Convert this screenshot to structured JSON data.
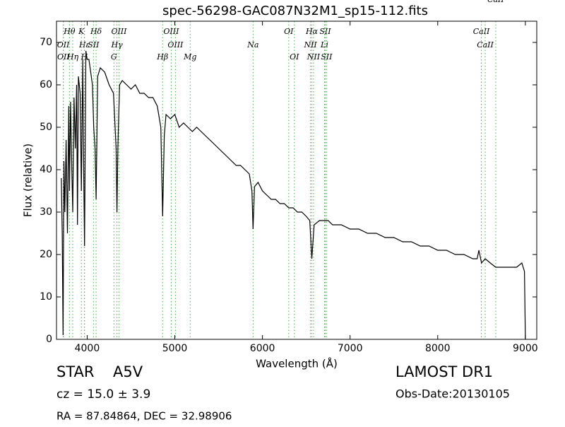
{
  "chart_data": {
    "type": "line",
    "title": "spec-56298-GAC087N32M1_sp15-112.fits",
    "x_label": "Wavelength (Å)",
    "y_label": "Flux (relative)",
    "xlim": [
      3650,
      9130
    ],
    "ylim": [
      0,
      75
    ],
    "xticks": [
      4000,
      5000,
      6000,
      7000,
      8000,
      9000
    ],
    "yticks": [
      0,
      10,
      20,
      30,
      40,
      50,
      60,
      70
    ],
    "grid": false,
    "series": [
      {
        "color": "#000000",
        "x": [
          3705,
          3715,
          3725,
          3735,
          3745,
          3760,
          3775,
          3790,
          3798,
          3810,
          3825,
          3835,
          3850,
          3865,
          3880,
          3889,
          3900,
          3920,
          3934,
          3950,
          3960,
          3970,
          3985,
          4000,
          4020,
          4040,
          4060,
          4075,
          4090,
          4102,
          4120,
          4150,
          4200,
          4250,
          4300,
          4330,
          4340,
          4350,
          4370,
          4400,
          4450,
          4500,
          4550,
          4600,
          4650,
          4700,
          4750,
          4800,
          4840,
          4861,
          4880,
          4900,
          4950,
          5000,
          5050,
          5100,
          5150,
          5200,
          5250,
          5300,
          5350,
          5400,
          5450,
          5500,
          5550,
          5600,
          5650,
          5700,
          5750,
          5800,
          5850,
          5880,
          5893,
          5910,
          5950,
          6000,
          6050,
          6100,
          6150,
          6200,
          6250,
          6300,
          6350,
          6400,
          6450,
          6500,
          6540,
          6563,
          6590,
          6650,
          6700,
          6750,
          6800,
          6900,
          7000,
          7100,
          7200,
          7300,
          7400,
          7500,
          7600,
          7700,
          7800,
          7900,
          8000,
          8100,
          8200,
          8300,
          8400,
          8450,
          8470,
          8500,
          8542,
          8600,
          8662,
          8700,
          8800,
          8900,
          8960,
          8990,
          9000
        ],
        "values": [
          38,
          25,
          1,
          42,
          30,
          47,
          25,
          55,
          35,
          56,
          40,
          30,
          57,
          45,
          60,
          27,
          62,
          58,
          35,
          66,
          40,
          22,
          68,
          66,
          66,
          63,
          60,
          50,
          45,
          33,
          62,
          64,
          63,
          60,
          58,
          45,
          30,
          45,
          60,
          61,
          60,
          59,
          60,
          58,
          58,
          57,
          57,
          55,
          50,
          29,
          48,
          53,
          52,
          53,
          50,
          51,
          50,
          49,
          50,
          49,
          48,
          47,
          46,
          45,
          44,
          43,
          42,
          41,
          41,
          40,
          39,
          35,
          26,
          36,
          37,
          35,
          34,
          33,
          33,
          32,
          32,
          31,
          31,
          30,
          30,
          29,
          28,
          19,
          27,
          28,
          28,
          28,
          27,
          27,
          26,
          26,
          25,
          25,
          24,
          24,
          23,
          23,
          22,
          22,
          21,
          21,
          20,
          20,
          19,
          19,
          21,
          18,
          19,
          18,
          17,
          17,
          17,
          17,
          18,
          16,
          0
        ]
      }
    ],
    "spectral_lines": {
      "color": "#4caf50",
      "lines": [
        {
          "wavelength": 3798,
          "label": "Hθ"
        },
        {
          "wavelength": 3934,
          "label": "K"
        },
        {
          "wavelength": 4102,
          "label": "Hδ"
        },
        {
          "wavelength": 4363,
          "label": "OIII"
        },
        {
          "wavelength": 4959,
          "label": "OIII"
        },
        {
          "wavelength": 6300,
          "label": "OI"
        },
        {
          "wavelength": 6563,
          "label": "Hα"
        },
        {
          "wavelength": 6716,
          "label": "SII"
        },
        {
          "wavelength": 8498,
          "label": "CaII"
        },
        {
          "wavelength": 3727,
          "label": "OII"
        },
        {
          "wavelength": 3970,
          "label": "Hε"
        },
        {
          "wavelength": 4072,
          "label": "SII"
        },
        {
          "wavelength": 4340,
          "label": "Hγ"
        },
        {
          "wavelength": 5007,
          "label": "OIII"
        },
        {
          "wavelength": 5893,
          "label": "Na"
        },
        {
          "wavelength": 6548,
          "label": "NII"
        },
        {
          "wavelength": 6708,
          "label": "Li"
        },
        {
          "wavelength": 8542,
          "label": "CaII"
        },
        {
          "wavelength": 3729,
          "label": "OII"
        },
        {
          "wavelength": 3835,
          "label": "Hη"
        },
        {
          "wavelength": 3968,
          "label": "H"
        },
        {
          "wavelength": 4305,
          "label": "G"
        },
        {
          "wavelength": 4861,
          "label": "Hβ"
        },
        {
          "wavelength": 5175,
          "label": "Mg"
        },
        {
          "wavelength": 6364,
          "label": "OI"
        },
        {
          "wavelength": 6583,
          "label": "NII"
        },
        {
          "wavelength": 6731,
          "label": "SII"
        },
        {
          "wavelength": 8662,
          "label": "CaII"
        }
      ]
    },
    "object_class": "STAR",
    "subclass": "A5V",
    "survey": "LAMOST DR1",
    "redshift_text": "cz = 15.0  ± 3.9",
    "obs_date": "Obs-Date:20130105",
    "coordinates": "RA = 87.84864, DEC = 32.98906"
  }
}
